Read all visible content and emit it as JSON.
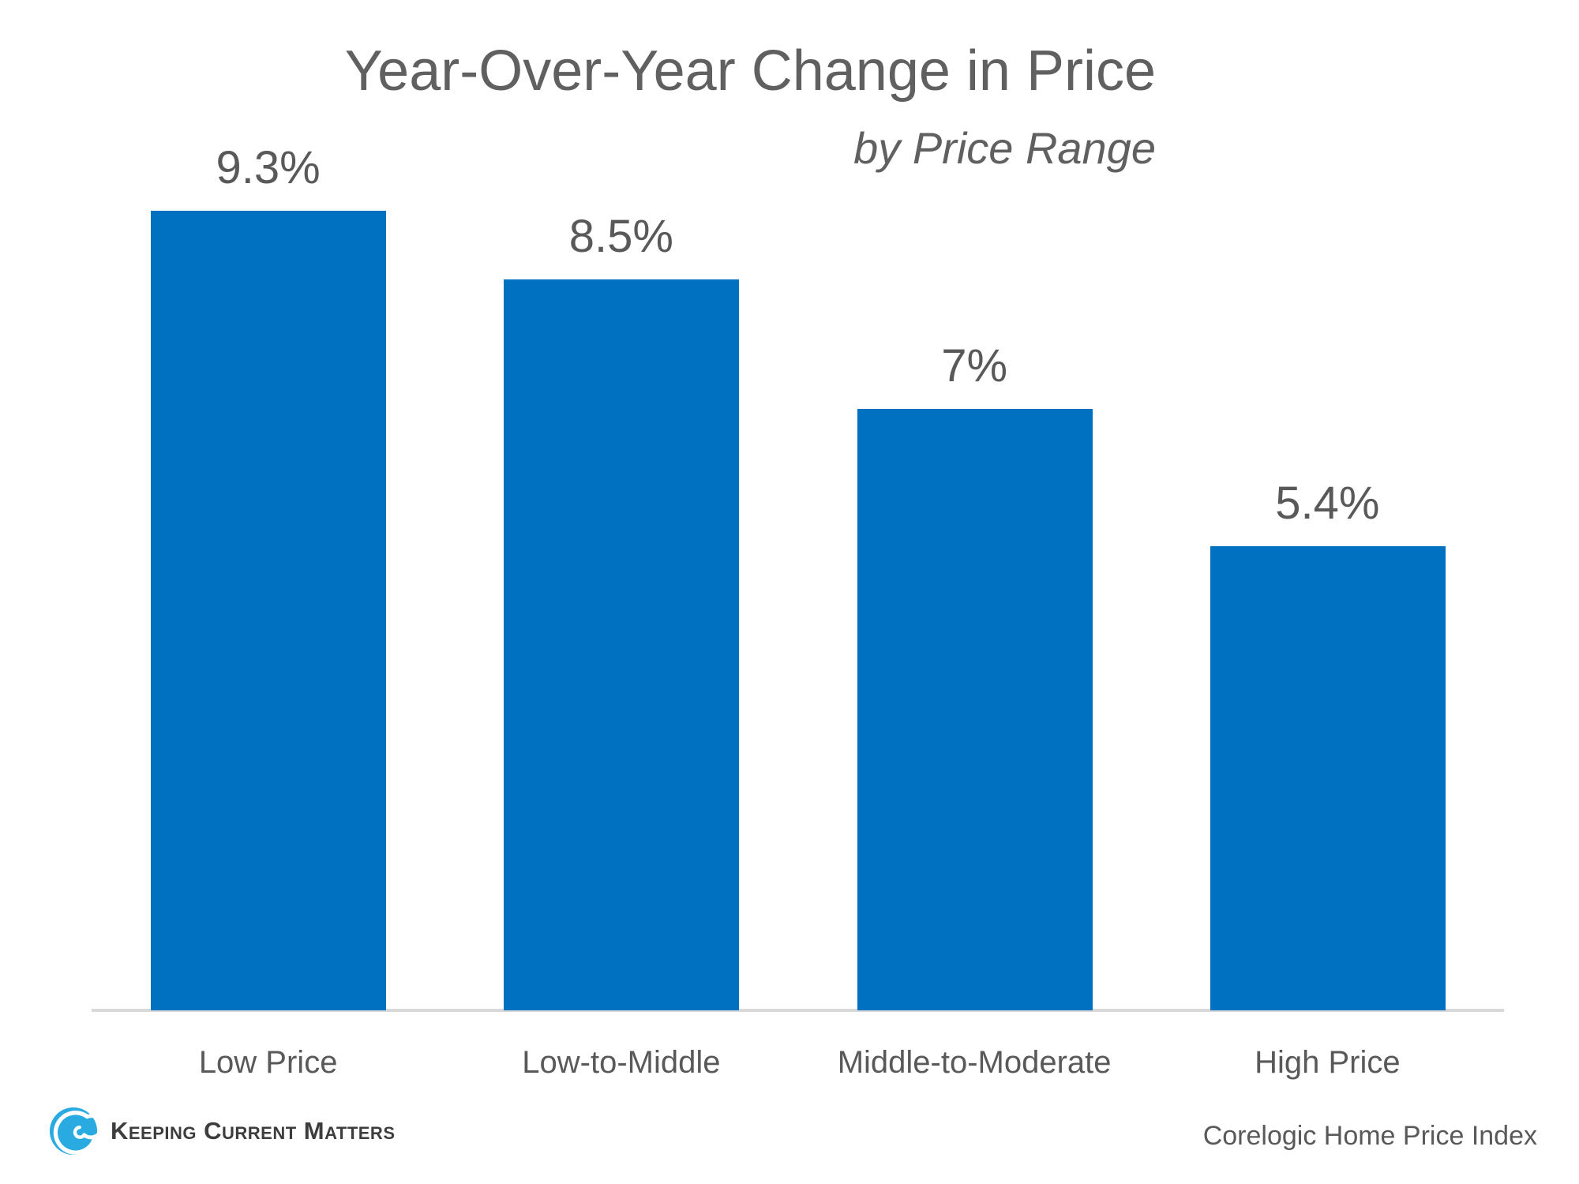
{
  "chart_data": {
    "type": "bar",
    "title": "Year-Over-Year Change in Price",
    "subtitle": "by Price Range",
    "categories": [
      "Low Price",
      "Low-to-Middle",
      "Middle-to-Moderate",
      "High Price"
    ],
    "values": [
      9.3,
      8.5,
      7,
      5.4
    ],
    "value_labels": [
      "9.3%",
      "8.5%",
      "7%",
      "5.4%"
    ],
    "xlabel": "",
    "ylabel": "",
    "ylim": [
      0,
      9.3
    ],
    "grid": false,
    "legend": false,
    "data_labels_position": "above-bars",
    "bar_color": "#0070C0",
    "text_color": "#595959",
    "title_color": "#606060",
    "axis_line_color": "#D9D9D9"
  },
  "footer": {
    "brand": "Keeping Current Matters",
    "brand_logo": "swirl-icon",
    "brand_color": "#29ABE2",
    "brand_text_color": "#3d3d3d",
    "source": "Corelogic Home Price Index"
  }
}
